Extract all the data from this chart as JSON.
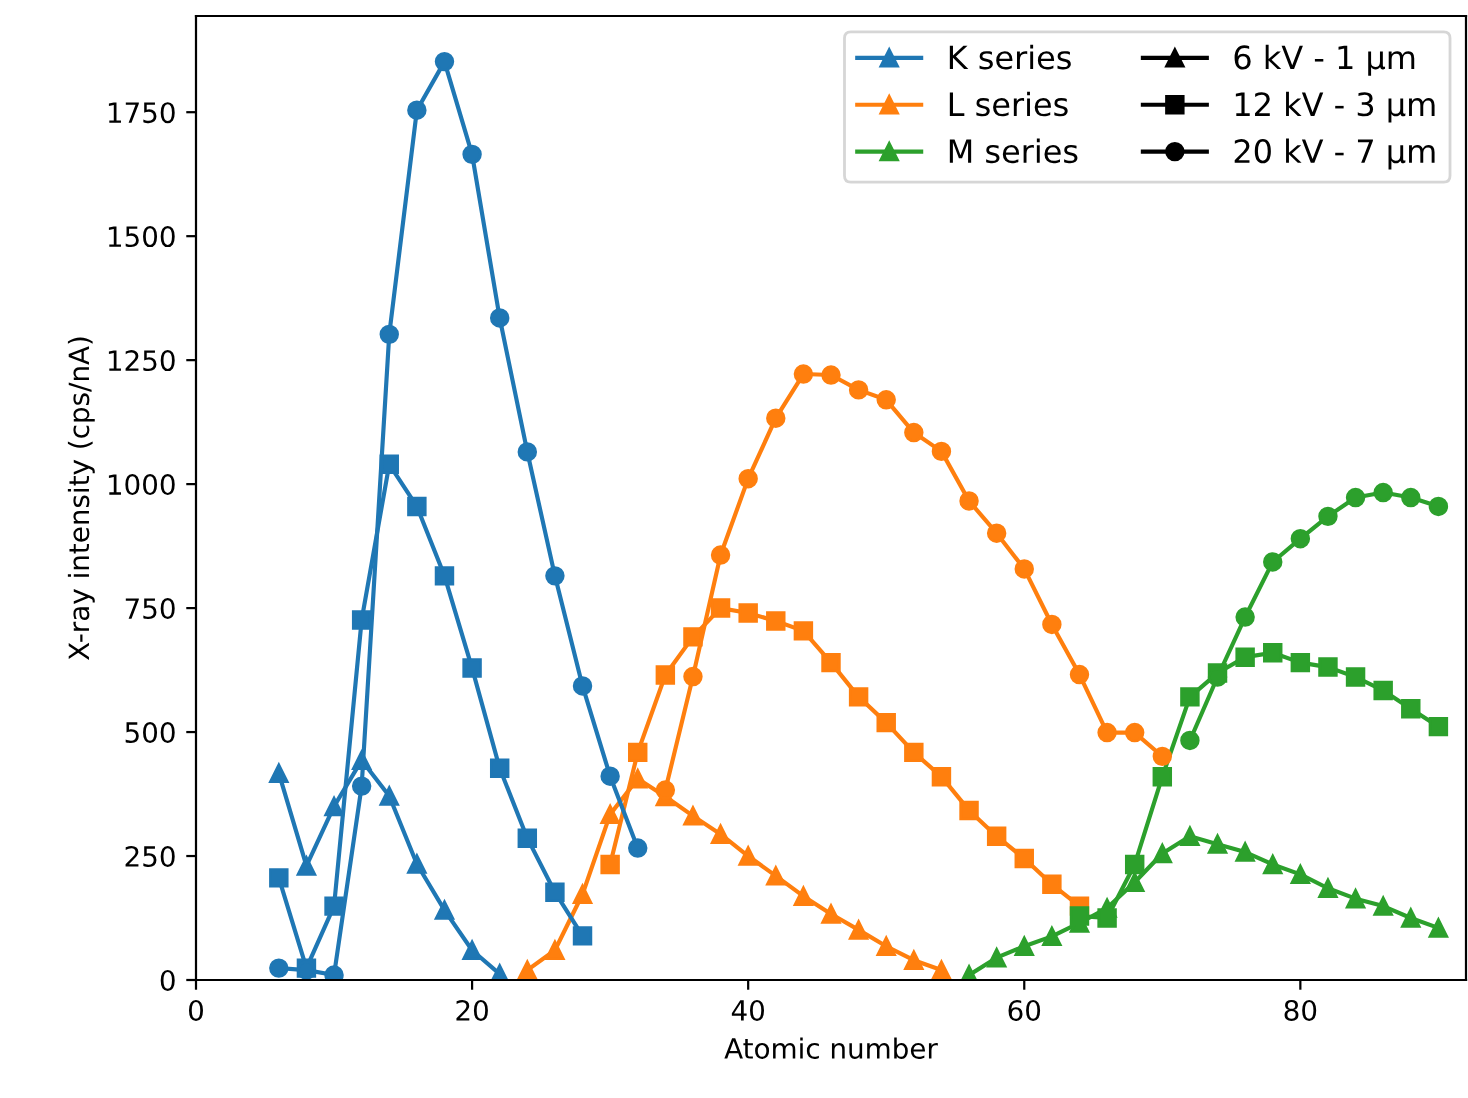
{
  "chart_data": {
    "type": "line",
    "xlabel": "Atomic number",
    "ylabel": "X-ray intensity (cps/nA)",
    "xlim": [
      0,
      92
    ],
    "ylim": [
      0,
      1944
    ],
    "xticks": [
      0,
      20,
      40,
      60,
      80
    ],
    "yticks": [
      0,
      250,
      500,
      750,
      1000,
      1250,
      1500,
      1750
    ],
    "grid": false,
    "legend": "top right",
    "line_style": "solid",
    "series": [
      {
        "name": "K series",
        "color": "#1f77b4",
        "marker": "triangle",
        "x": [
          6,
          8,
          10,
          12,
          14,
          16,
          18,
          20,
          22
        ],
        "values": [
          417,
          230,
          350,
          443,
          371,
          234,
          141,
          60,
          12
        ]
      },
      {
        "name": "L series",
        "color": "#ff7f0e",
        "marker": "triangle",
        "x": [
          24,
          26,
          28,
          30,
          32,
          34,
          36,
          38,
          40,
          42,
          44,
          46,
          48,
          50,
          52,
          54
        ],
        "values": [
          20,
          60,
          173,
          334,
          406,
          370,
          331,
          294,
          250,
          210,
          169,
          133,
          101,
          68,
          40,
          20
        ]
      },
      {
        "name": "M series",
        "color": "#2ca02c",
        "marker": "triangle",
        "x": [
          56,
          58,
          60,
          62,
          64,
          66,
          68,
          70,
          72,
          74,
          76,
          78,
          80,
          82,
          84,
          86,
          88,
          90
        ],
        "values": [
          10,
          45,
          68,
          88,
          115,
          145,
          197,
          255,
          290,
          274,
          258,
          233,
          213,
          185,
          164,
          149,
          125,
          105
        ]
      },
      {
        "color": "#1f77b4",
        "marker": "square",
        "x": [
          6,
          8,
          10,
          12,
          14,
          16,
          18,
          20,
          22,
          24,
          26,
          28
        ],
        "values": [
          206,
          24,
          149,
          726,
          1040,
          955,
          815,
          629,
          427,
          286,
          177,
          89
        ]
      },
      {
        "color": "#ff7f0e",
        "marker": "square",
        "x": [
          30,
          32,
          34,
          36,
          38,
          40,
          42,
          44,
          46,
          48,
          50,
          52,
          54,
          56,
          58,
          60,
          62,
          64
        ],
        "values": [
          233,
          459,
          615,
          692,
          750,
          740,
          724,
          704,
          640,
          571,
          519,
          459,
          410,
          342,
          290,
          245,
          193,
          149
        ]
      },
      {
        "color": "#2ca02c",
        "marker": "square",
        "x": [
          64,
          66,
          68,
          70,
          72,
          74,
          76,
          78,
          80,
          82,
          84,
          86,
          88,
          90
        ],
        "values": [
          129,
          125,
          233,
          410,
          571,
          619,
          651,
          660,
          640,
          631,
          611,
          584,
          547,
          511
        ]
      },
      {
        "color": "#1f77b4",
        "marker": "circle",
        "x": [
          6,
          8,
          10,
          12,
          14,
          16,
          18,
          20,
          22,
          24,
          26,
          28,
          30,
          32
        ],
        "values": [
          24,
          20,
          10,
          391,
          1302,
          1754,
          1852,
          1665,
          1335,
          1065,
          815,
          593,
          411,
          266
        ]
      },
      {
        "color": "#ff7f0e",
        "marker": "circle",
        "x": [
          34,
          36,
          38,
          40,
          42,
          44,
          46,
          48,
          50,
          52,
          54,
          56,
          58,
          60,
          62,
          64,
          66,
          68,
          70
        ],
        "values": [
          383,
          612,
          857,
          1011,
          1133,
          1222,
          1220,
          1190,
          1170,
          1104,
          1066,
          966,
          901,
          829,
          717,
          616,
          499,
          499,
          451
        ]
      },
      {
        "color": "#2ca02c",
        "marker": "circle",
        "x": [
          72,
          74,
          76,
          78,
          80,
          82,
          84,
          86,
          88,
          90
        ],
        "values": [
          483,
          611,
          732,
          843,
          890,
          935,
          973,
          983,
          973,
          955
        ]
      },
      {
        "name": "6 kV - 1 µm",
        "color": "#000000",
        "marker": "triangle"
      },
      {
        "name": "12 kV - 3 µm",
        "color": "#000000",
        "marker": "square"
      },
      {
        "name": "20 kV - 7 µm",
        "color": "#000000",
        "marker": "circle"
      }
    ]
  }
}
